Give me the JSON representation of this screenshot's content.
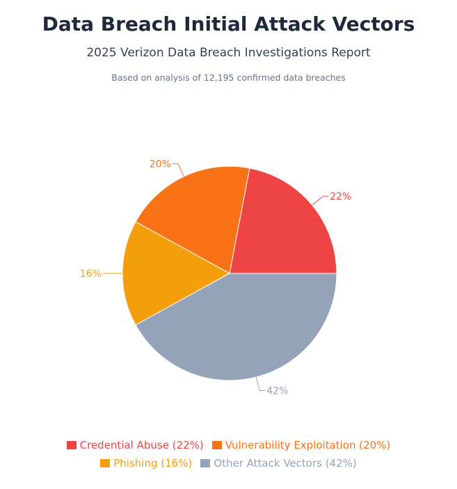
{
  "title": "Data Breach Initial Attack Vectors",
  "subtitle": "2025 Verizon Data Breach Investigations Report",
  "note": "Based on analysis of 12,195 confirmed data breaches",
  "chart_data": {
    "type": "pie",
    "title": "Data Breach Initial Attack Vectors",
    "subtitle": "2025 Verizon Data Breach Investigations Report",
    "categories": [
      "Credential Abuse",
      "Vulnerability Exploitation",
      "Phishing",
      "Other Attack Vectors"
    ],
    "values": [
      22,
      20,
      16,
      42
    ],
    "data_labels": [
      "22%",
      "20%",
      "16%",
      "42%"
    ],
    "colors": [
      "#ef4444",
      "#f97316",
      "#f59e0b",
      "#94a3b8"
    ],
    "legend": {
      "position": "bottom",
      "entries": [
        "Credential Abuse (22%)",
        "Vulnerability Exploitation (20%)",
        "Phishing (16%)",
        "Other Attack Vectors (42%)"
      ]
    }
  }
}
